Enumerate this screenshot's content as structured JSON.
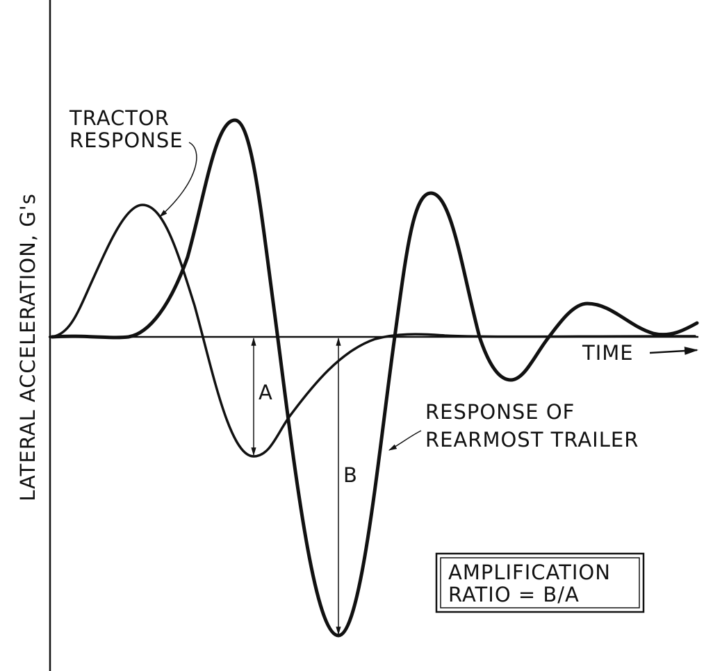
{
  "axes": {
    "y_label": "LATERAL ACCELERATION, G's",
    "x_label": "TIME"
  },
  "labels": {
    "tractor": [
      "TRACTOR",
      "RESPONSE"
    ],
    "trailer": [
      "RESPONSE OF",
      "REARMOST TRAILER"
    ],
    "a": "A",
    "b": "B"
  },
  "box": {
    "lines": [
      "AMPLIFICATION",
      "RATIO = B/A"
    ]
  }
}
